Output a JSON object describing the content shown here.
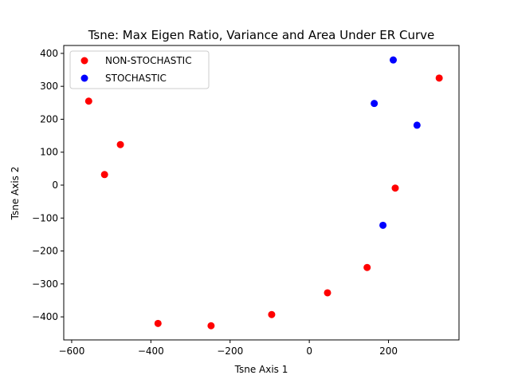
{
  "chart_data": {
    "type": "scatter",
    "title": "Tsne: Max Eigen Ratio, Variance and Area Under ER Curve",
    "xlabel": "Tsne Axis 1",
    "ylabel": "Tsne Axis 2",
    "xlim": [
      -620,
      378
    ],
    "ylim": [
      -470,
      424
    ],
    "xticks": [
      -600,
      -400,
      -200,
      0,
      200
    ],
    "yticks": [
      -400,
      -300,
      -200,
      -100,
      0,
      100,
      200,
      300,
      400
    ],
    "grid": false,
    "legend_position": "top-left",
    "series": [
      {
        "name": "NON-STOCHASTIC",
        "color": "#ff0000",
        "points": [
          {
            "x": 328,
            "y": 325
          },
          {
            "x": -557,
            "y": 255
          },
          {
            "x": -477,
            "y": 123
          },
          {
            "x": -517,
            "y": 32
          },
          {
            "x": 217,
            "y": -9
          },
          {
            "x": 146,
            "y": -250
          },
          {
            "x": 46,
            "y": -327
          },
          {
            "x": -95,
            "y": -393
          },
          {
            "x": -382,
            "y": -420
          },
          {
            "x": -248,
            "y": -427
          }
        ]
      },
      {
        "name": "STOCHASTIC",
        "color": "#0000ff",
        "points": [
          {
            "x": 212,
            "y": 380
          },
          {
            "x": 164,
            "y": 248
          },
          {
            "x": 272,
            "y": 182
          },
          {
            "x": 186,
            "y": -122
          }
        ]
      }
    ]
  }
}
